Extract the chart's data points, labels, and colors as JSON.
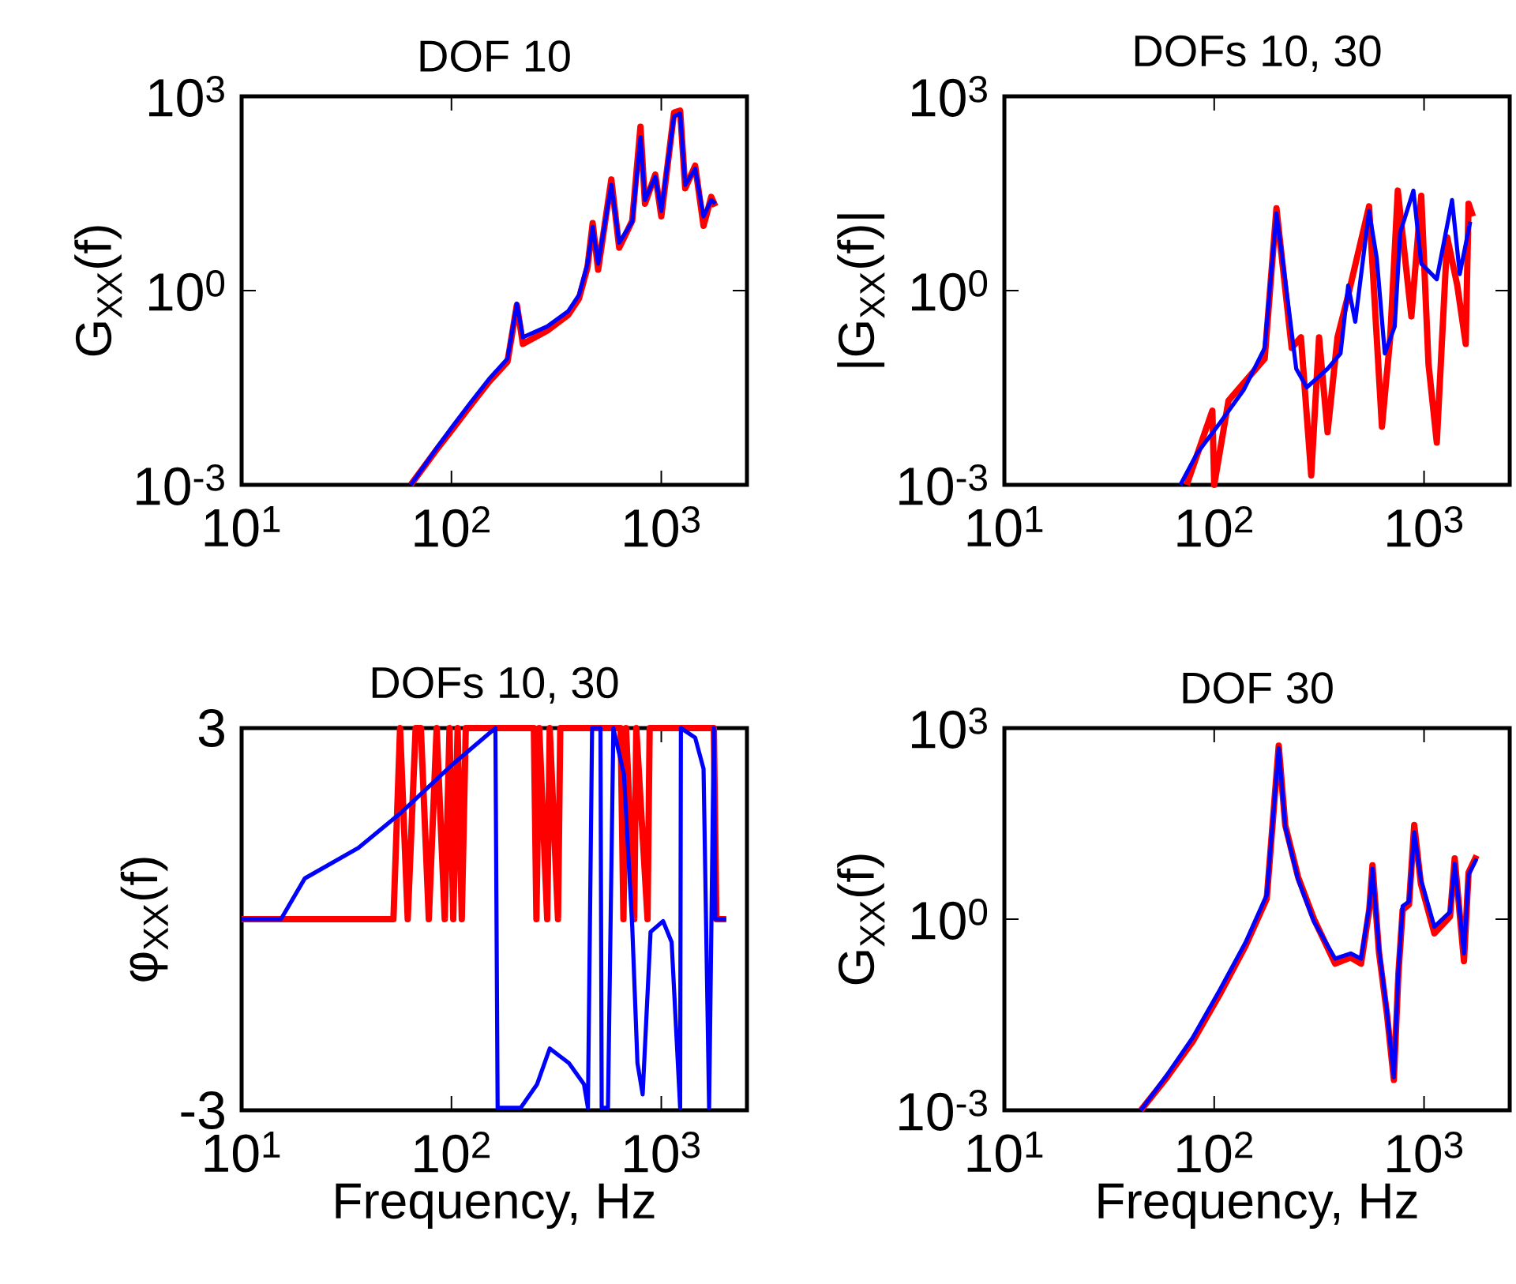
{
  "chart_data": [
    {
      "type": "line",
      "title": "DOF 10",
      "ylabel": "G$_{XX}$(f)",
      "log": "xy",
      "xlim": [
        10,
        2560
      ],
      "ylim": [
        0.001,
        1000
      ],
      "xticks": [
        {
          "value": 10,
          "label": "10$^{1}$"
        },
        {
          "value": 100,
          "label": "10$^{2}$"
        },
        {
          "value": 1000,
          "label": "10$^{3}$"
        }
      ],
      "yticks": [
        {
          "value": 0.001,
          "label": "10$^{-3}$"
        },
        {
          "value": 1,
          "label": "10$^{0}$"
        },
        {
          "value": 1000,
          "label": "10$^{3}$"
        }
      ],
      "series": [
        {
          "color": "#ff0000",
          "x": [
            64,
            85,
            101,
            120,
            151,
            185,
            205,
            219,
            286,
            360,
            405,
            445,
            471,
            500,
            578,
            630,
            727,
            796,
            836,
            936,
            1000,
            1150,
            1230,
            1300,
            1450,
            1590,
            1730,
            1810
          ],
          "values": [
            0.001,
            0.0035,
            0.0072,
            0.015,
            0.039,
            0.08,
            0.6,
            0.15,
            0.24,
            0.42,
            0.75,
            2.3,
            11,
            2.1,
            52,
            4.6,
            12,
            340,
            22,
            62,
            14,
            560,
            600,
            38,
            85,
            10,
            28,
            20
          ]
        },
        {
          "color": "#0000ff",
          "x": [
            64,
            85,
            101,
            120,
            151,
            185,
            205,
            219,
            286,
            360,
            405,
            445,
            471,
            500,
            578,
            630,
            727,
            796,
            836,
            936,
            1000,
            1150,
            1230,
            1300,
            1450,
            1590,
            1730,
            1810
          ],
          "values": [
            0.001,
            0.0037,
            0.0079,
            0.0166,
            0.043,
            0.089,
            0.63,
            0.19,
            0.28,
            0.48,
            0.85,
            2.6,
            9.6,
            2.6,
            43,
            5.5,
            11.6,
            233,
            25,
            57,
            17,
            490,
            540,
            43,
            76,
            14,
            25,
            22
          ]
        }
      ]
    },
    {
      "type": "line",
      "title": "DOFs 10, 30",
      "ylabel": "|G$_{XX}$(f)|",
      "log": "xy",
      "xlim": [
        10,
        2560
      ],
      "ylim": [
        0.001,
        1000
      ],
      "xticks": [
        {
          "value": 10,
          "label": "10$^{1}$"
        },
        {
          "value": 100,
          "label": "10$^{2}$"
        },
        {
          "value": 1000,
          "label": "10$^{3}$"
        }
      ],
      "yticks": [
        {
          "value": 0.001,
          "label": "10$^{-3}$"
        },
        {
          "value": 1,
          "label": "10$^{0}$"
        },
        {
          "value": 1000,
          "label": "10$^{3}$"
        }
      ],
      "series": [
        {
          "color": "#ff0000",
          "x": [
            74,
            98,
            100,
            117,
            174,
            198,
            234,
            259,
            290,
            316,
            347,
            387,
            435,
            547,
            630,
            690,
            750,
            870,
            970,
            1050,
            1150,
            1290,
            1440,
            1580,
            1630,
            1710
          ],
          "values": [
            0.001,
            0.014,
            0.001,
            0.02,
            0.089,
            18.7,
            0.13,
            0.19,
            0.0014,
            0.19,
            0.0065,
            0.19,
            0.85,
            20,
            0.0079,
            0.19,
            35,
            0.4,
            29,
            0.074,
            0.0045,
            6.6,
            1.2,
            0.15,
            22,
            14
          ]
        },
        {
          "color": "#0000ff",
          "x": [
            69,
            83,
            105,
            138,
            174,
            198,
            213,
            246,
            276,
            347,
            400,
            435,
            470,
            547,
            595,
            650,
            725,
            770,
            890,
            970,
            1150,
            1360,
            1480,
            1660
          ],
          "values": [
            0.001,
            0.0031,
            0.0085,
            0.029,
            0.13,
            15.5,
            2.6,
            0.062,
            0.032,
            0.062,
            0.107,
            1.2,
            0.33,
            17,
            3.2,
            0.107,
            0.28,
            7.9,
            35,
            2.6,
            1.5,
            25,
            1.8,
            11.6
          ]
        }
      ]
    },
    {
      "type": "line",
      "title": "DOFs 10, 30",
      "ylabel": "φ$_{XX}$(f)",
      "xlabel": "Frequency, Hz",
      "log": "x",
      "xlim": [
        10,
        2560
      ],
      "ylim": [
        -3,
        3
      ],
      "xticks": [
        {
          "value": 10,
          "label": "10$^{1}$"
        },
        {
          "value": 100,
          "label": "10$^{2}$"
        },
        {
          "value": 1000,
          "label": "10$^{3}$"
        }
      ],
      "yticks": [
        -3,
        3
      ],
      "series": [
        {
          "color": "#ff0000",
          "x": [
            10,
            52.9,
            56.9,
            61.9,
            67.5,
            71.5,
            78,
            85,
            92.9,
            97.9,
            102,
            107,
            112,
            117,
            124,
            247,
            254,
            262,
            286,
            294,
            322,
            330,
            640,
            660,
            679,
            743,
            760,
            860,
            880,
            1780,
            1830,
            2040
          ],
          "values": [
            0,
            0,
            3,
            0,
            3,
            3,
            0,
            3,
            0,
            3,
            0,
            3,
            0,
            3,
            3,
            3,
            0,
            3,
            0,
            3,
            0,
            3,
            3,
            0,
            3,
            0,
            3,
            0,
            3,
            3,
            0,
            0
          ]
        },
        {
          "color": "#0000ff",
          "x": [
            10,
            15.4,
            20,
            36,
            57,
            102,
            162,
            166,
            214,
            256,
            294,
            363,
            428,
            447,
            468,
            513,
            520,
            557,
            591,
            664,
            727,
            770,
            815,
            889,
            1020,
            1120,
            1230,
            1240,
            1450,
            1590,
            1690,
            1780,
            1810,
            2040
          ],
          "values": [
            0,
            0,
            0.64,
            1.12,
            1.66,
            2.44,
            3,
            -2.96,
            -2.96,
            -2.59,
            -2.03,
            -2.26,
            -2.59,
            -2.96,
            3,
            3,
            -2.96,
            -2.96,
            3,
            2.27,
            -0.11,
            -2.26,
            -2.75,
            -0.2,
            -0.03,
            -0.36,
            -2.96,
            3,
            2.85,
            2.36,
            -2.96,
            3,
            0,
            0
          ]
        }
      ]
    },
    {
      "type": "line",
      "title": "DOF 30",
      "ylabel": "G$_{XX}$(f)",
      "xlabel": "Frequency, Hz",
      "log": "xy",
      "xlim": [
        10,
        2560
      ],
      "ylim": [
        0.001,
        1000
      ],
      "xticks": [
        {
          "value": 10,
          "label": "10$^{1}$"
        },
        {
          "value": 100,
          "label": "10$^{2}$"
        },
        {
          "value": 1000,
          "label": "10$^{3}$"
        }
      ],
      "yticks": [
        {
          "value": 0.001,
          "label": "10$^{-3}$"
        },
        {
          "value": 1,
          "label": "10$^{0}$"
        },
        {
          "value": 1000,
          "label": "10$^{3}$"
        }
      ],
      "series": [
        {
          "color": "#ff0000",
          "x": [
            44.7,
            59.6,
            79,
            106,
            141,
            178,
            203,
            218,
            251,
            299,
            377,
            447,
            501,
            548,
            568,
            610,
            666,
            718,
            755,
            791,
            848,
            898,
            966,
            1120,
            1330,
            1400,
            1550,
            1630,
            1780
          ],
          "values": [
            0.001,
            0.0033,
            0.012,
            0.065,
            0.38,
            2.1,
            530,
            30,
            4.6,
            1.0,
            0.2,
            0.25,
            0.2,
            1.4,
            7,
            0.3,
            0.032,
            0.003,
            0.14,
            1.4,
            1.7,
            30,
            3.6,
            0.6,
            1.1,
            9,
            0.22,
            5.4,
            10
          ]
        },
        {
          "color": "#0000ff",
          "x": [
            44.7,
            59.6,
            79,
            106,
            141,
            178,
            203,
            218,
            251,
            299,
            377,
            447,
            501,
            548,
            568,
            610,
            666,
            718,
            755,
            791,
            848,
            898,
            966,
            1120,
            1330,
            1400,
            1550,
            1630,
            1780
          ],
          "values": [
            0.001,
            0.0036,
            0.0138,
            0.076,
            0.43,
            2.4,
            490,
            28,
            4.2,
            0.91,
            0.24,
            0.29,
            0.24,
            1.6,
            6.2,
            0.35,
            0.035,
            0.0033,
            0.16,
            1.6,
            1.9,
            23,
            4.2,
            0.76,
            1.3,
            7.4,
            0.29,
            5,
            8.9
          ]
        }
      ]
    }
  ]
}
